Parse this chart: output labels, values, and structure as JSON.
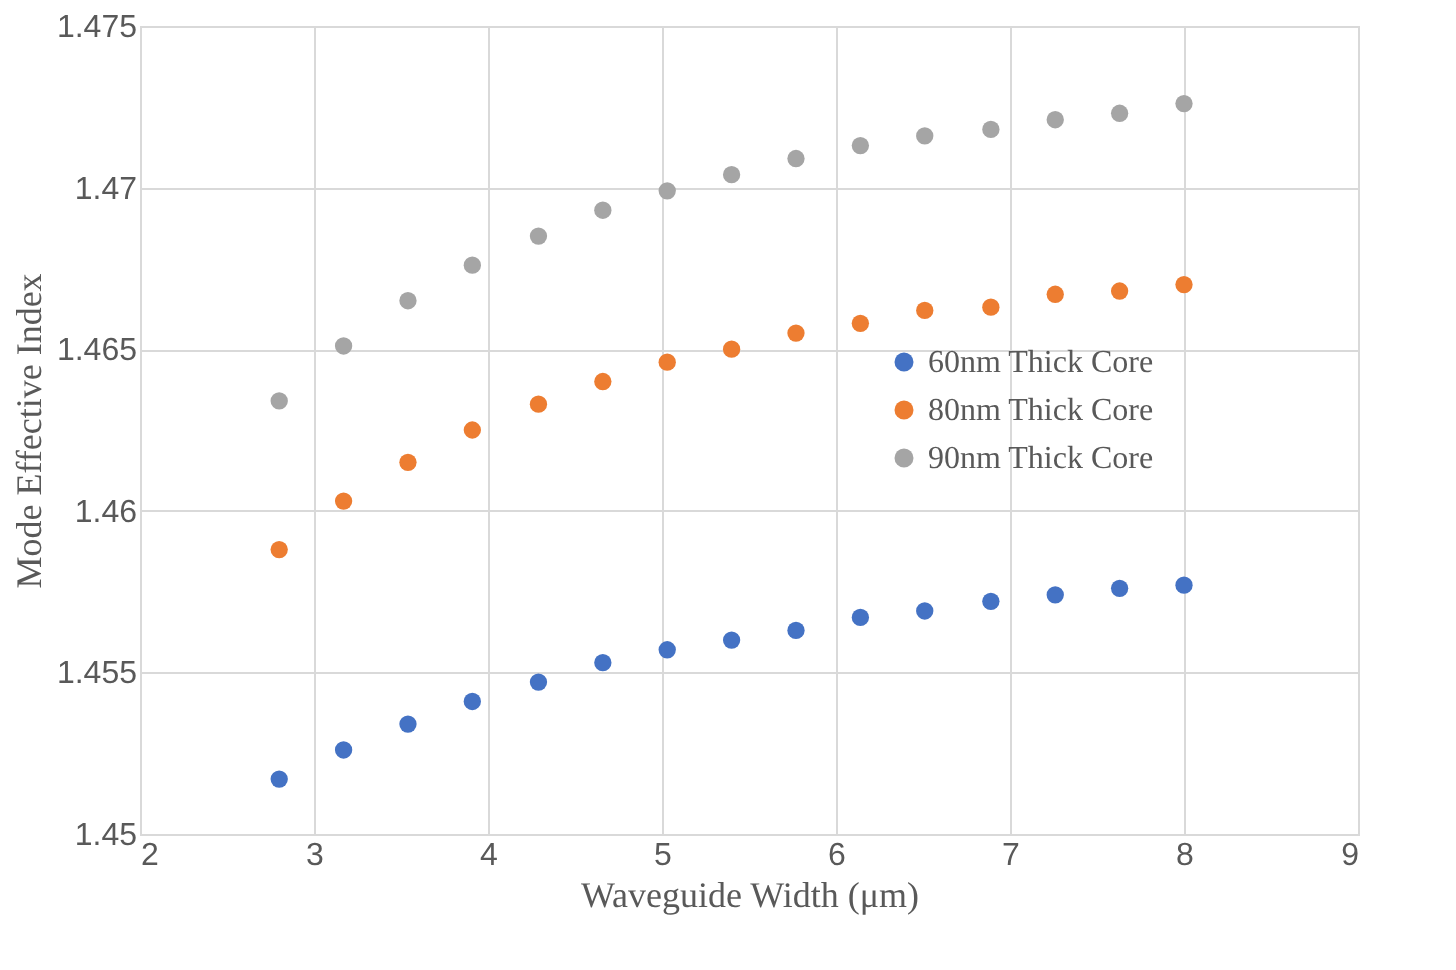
{
  "chart_data": {
    "type": "scatter",
    "xlabel": "Waveguide Width (μm)",
    "ylabel": "Mode Effective Index",
    "x": [
      2.8,
      3.17,
      3.54,
      3.91,
      4.29,
      4.66,
      5.03,
      5.4,
      5.77,
      6.14,
      6.51,
      6.89,
      7.26,
      7.63,
      8.0
    ],
    "series": [
      {
        "name": "60nm Thick Core",
        "color": "#4472c4",
        "values": [
          1.4517,
          1.4526,
          1.4534,
          1.4541,
          1.4547,
          1.4553,
          1.4557,
          1.456,
          1.4563,
          1.4567,
          1.4569,
          1.4572,
          1.4574,
          1.4576,
          1.4577
        ]
      },
      {
        "name": "80nm Thick Core",
        "color": "#ed7d31",
        "values": [
          1.4588,
          1.4603,
          1.4615,
          1.4625,
          1.4633,
          1.464,
          1.4646,
          1.465,
          1.4655,
          1.4658,
          1.4662,
          1.4663,
          1.4667,
          1.4668,
          1.467
        ]
      },
      {
        "name": "90nm Thick Core",
        "color": "#a5a5a5",
        "values": [
          1.4634,
          1.4651,
          1.4665,
          1.4676,
          1.4685,
          1.4693,
          1.4699,
          1.4704,
          1.4709,
          1.4713,
          1.4716,
          1.4718,
          1.4721,
          1.4723,
          1.4726
        ]
      }
    ],
    "xlim": [
      2,
      9
    ],
    "xticks": [
      2,
      3,
      4,
      5,
      6,
      7,
      8,
      9
    ],
    "ylim": [
      1.45,
      1.475
    ],
    "yticks": [
      1.45,
      1.455,
      1.46,
      1.465,
      1.47,
      1.475
    ],
    "grid": true,
    "legend": "right",
    "marker": "circle"
  }
}
